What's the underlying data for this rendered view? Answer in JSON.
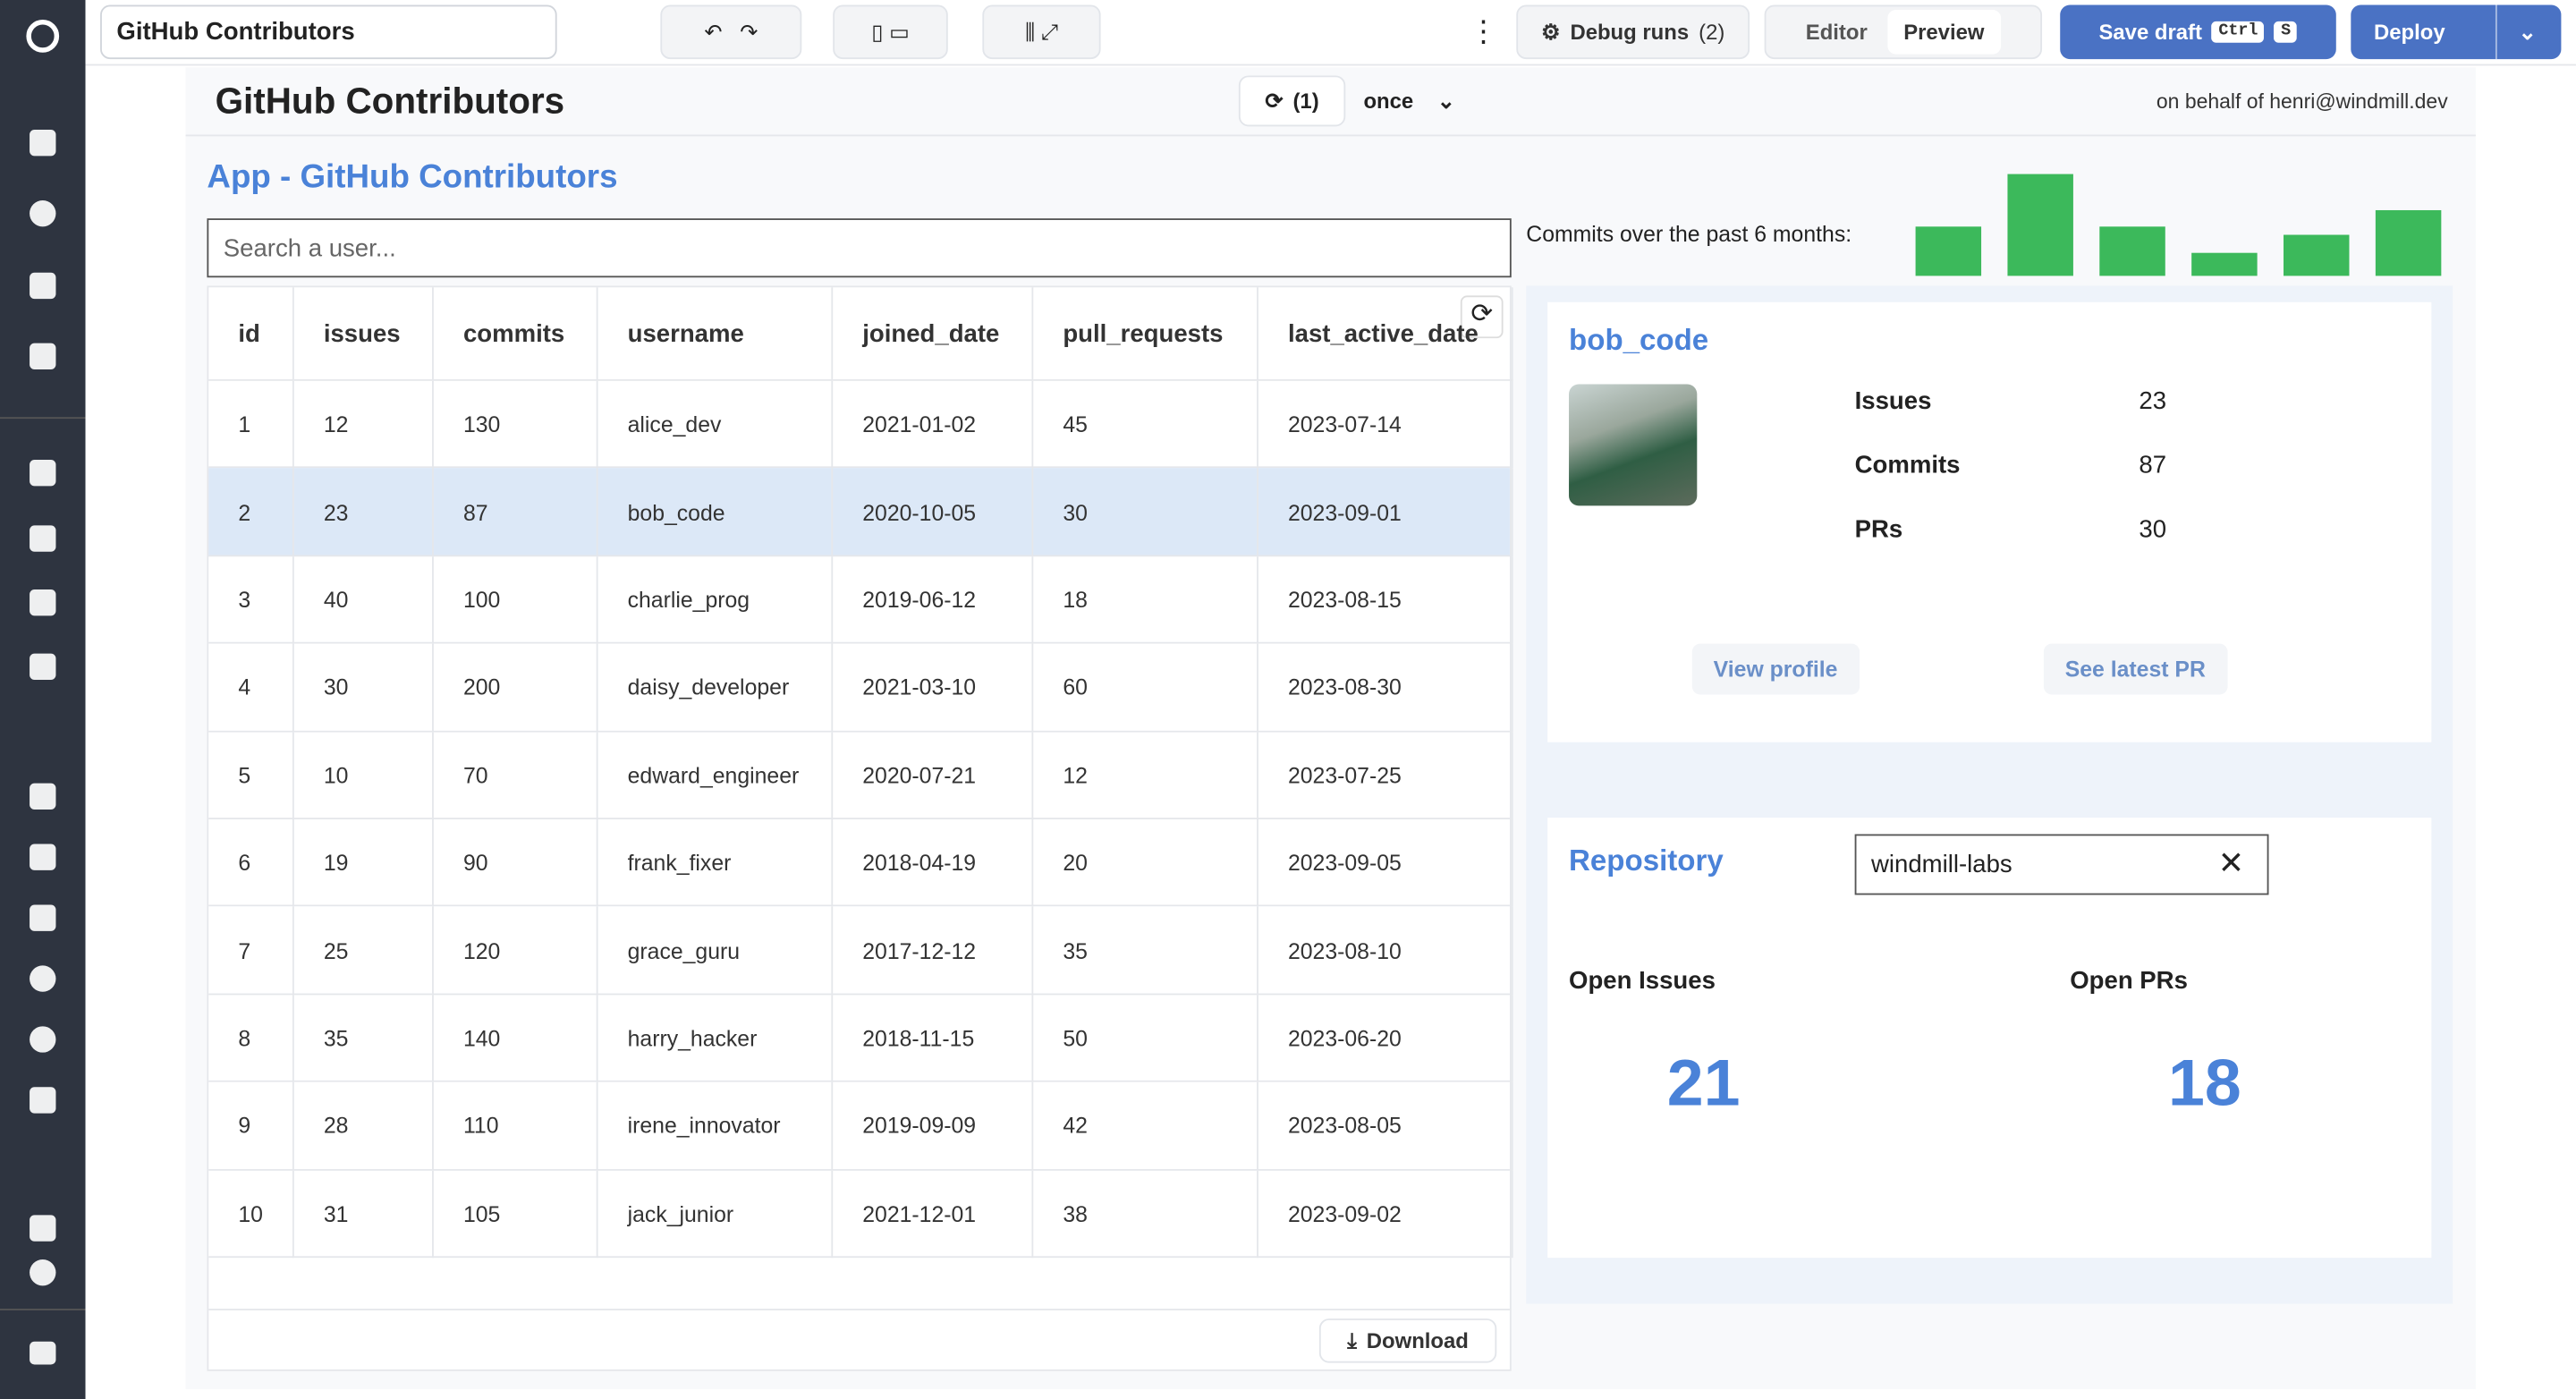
{
  "toolbar": {
    "app_name": "GitHub Contributors",
    "debug_runs": "Debug runs",
    "debug_count": "(2)",
    "editor": "Editor",
    "preview": "Preview",
    "save_draft": "Save draft",
    "shortcut_keys": [
      "Ctrl",
      "S"
    ],
    "deploy": "Deploy"
  },
  "app_header": {
    "title": "GitHub Contributors",
    "refresh_count": "(1)",
    "refresh_mode": "once",
    "on_behalf": "on behalf of henri@windmill.dev"
  },
  "app": {
    "title": "App - GitHub Contributors",
    "search_placeholder": "Search a user...",
    "table": {
      "columns": [
        "id",
        "issues",
        "commits",
        "username",
        "joined_date",
        "pull_requests",
        "last_active_date"
      ],
      "rows": [
        [
          1,
          12,
          130,
          "alice_dev",
          "2021-01-02",
          45,
          "2023-07-14"
        ],
        [
          2,
          23,
          87,
          "bob_code",
          "2020-10-05",
          30,
          "2023-09-01"
        ],
        [
          3,
          40,
          100,
          "charlie_prog",
          "2019-06-12",
          18,
          "2023-08-15"
        ],
        [
          4,
          30,
          200,
          "daisy_developer",
          "2021-03-10",
          60,
          "2023-08-30"
        ],
        [
          5,
          10,
          70,
          "edward_engineer",
          "2020-07-21",
          12,
          "2023-07-25"
        ],
        [
          6,
          19,
          90,
          "frank_fixer",
          "2018-04-19",
          20,
          "2023-09-05"
        ],
        [
          7,
          25,
          120,
          "grace_guru",
          "2017-12-12",
          35,
          "2023-08-10"
        ],
        [
          8,
          35,
          140,
          "harry_hacker",
          "2018-11-15",
          50,
          "2023-06-20"
        ],
        [
          9,
          28,
          110,
          "irene_innovator",
          "2019-09-09",
          42,
          "2023-08-05"
        ],
        [
          10,
          31,
          105,
          "jack_junior",
          "2021-12-01",
          38,
          "2023-09-02"
        ]
      ]
    },
    "download": "Download",
    "commits_chart": {
      "type": "bar",
      "label": "Commits over the past 6 months:",
      "values": [
        30,
        62,
        30,
        14,
        25,
        40
      ],
      "color": "#3cb95b"
    },
    "user_card": {
      "username": "bob_code",
      "stats": [
        {
          "label": "Issues",
          "value": 23
        },
        {
          "label": "Commits",
          "value": 87
        },
        {
          "label": "PRs",
          "value": 30
        }
      ],
      "buttons": [
        "View profile",
        "See latest PR"
      ]
    },
    "repository": {
      "label": "Repository",
      "input": "windmill-labs",
      "open_issues_label": "Open Issues",
      "open_issues": 21,
      "open_prs_label": "Open PRs",
      "open_prs": 18
    }
  }
}
